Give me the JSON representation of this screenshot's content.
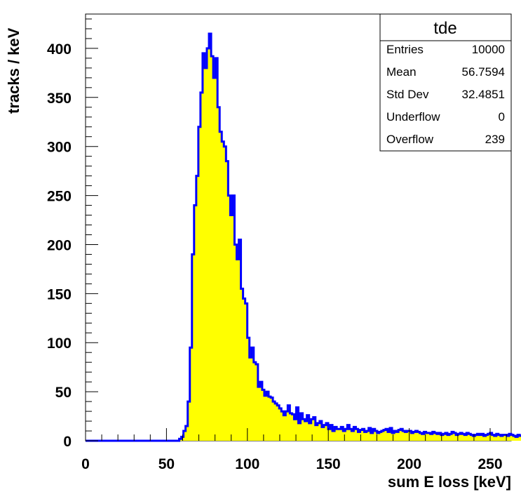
{
  "chart_data": {
    "type": "histogram",
    "xlabel": "sum E loss [keV]",
    "ylabel": "tracks / keV",
    "xlim": [
      0,
      263
    ],
    "ylim": [
      0,
      435
    ],
    "x_ticks": [
      "0",
      "50",
      "100",
      "150",
      "200",
      "250"
    ],
    "y_ticks": [
      "0",
      "50",
      "100",
      "150",
      "200",
      "250",
      "300",
      "350",
      "400"
    ],
    "bin_width": 1.315,
    "fill_color": "#ffff00",
    "line_color": "#0000ff",
    "bin_values": [
      0,
      0,
      0,
      0,
      0,
      0,
      0,
      0,
      0,
      0,
      0,
      0,
      0,
      0,
      0,
      0,
      0,
      0,
      0,
      0,
      0,
      0,
      0,
      0,
      0,
      0,
      0,
      0,
      0,
      0,
      0,
      0,
      0,
      0,
      0,
      0,
      0,
      0,
      0,
      0,
      0,
      0,
      0,
      0,
      2,
      4,
      10,
      15,
      40,
      95,
      190,
      240,
      270,
      320,
      355,
      395,
      380,
      400,
      415,
      392,
      370,
      390,
      340,
      315,
      305,
      300,
      285,
      250,
      230,
      250,
      200,
      185,
      205,
      155,
      145,
      140,
      105,
      85,
      95,
      80,
      78,
      55,
      60,
      52,
      46,
      50,
      45,
      44,
      40,
      38,
      36,
      33,
      30,
      26,
      30,
      36,
      28,
      27,
      22,
      34,
      18,
      28,
      22,
      20,
      26,
      18,
      22,
      24,
      16,
      18,
      20,
      14,
      16,
      18,
      12,
      16,
      10,
      14,
      12,
      12,
      14,
      10,
      12,
      16,
      12,
      10,
      14,
      12,
      9,
      11,
      12,
      9,
      10,
      13,
      8,
      12,
      10,
      8,
      9,
      10,
      11,
      12,
      9,
      13,
      8,
      10,
      9,
      11,
      12,
      10,
      9,
      10,
      10,
      8,
      9,
      10,
      9,
      8,
      7,
      9,
      8,
      8,
      7,
      9,
      8,
      7,
      8,
      6,
      7,
      8,
      6,
      7,
      9,
      8,
      6,
      7,
      8,
      7,
      6,
      8,
      7,
      6,
      5,
      6,
      7,
      6,
      7,
      5,
      6,
      7,
      8,
      6,
      5,
      7,
      6,
      5,
      6,
      6,
      5,
      7,
      6,
      5,
      4,
      6,
      5
    ]
  },
  "stats": {
    "title": "tde",
    "rows": [
      {
        "name": "Entries",
        "value": "10000"
      },
      {
        "name": "Mean",
        "value": "56.7594"
      },
      {
        "name": "Std Dev",
        "value": "32.4851"
      },
      {
        "name": "Underflow",
        "value": "0"
      },
      {
        "name": "Overflow",
        "value": "239"
      }
    ]
  }
}
